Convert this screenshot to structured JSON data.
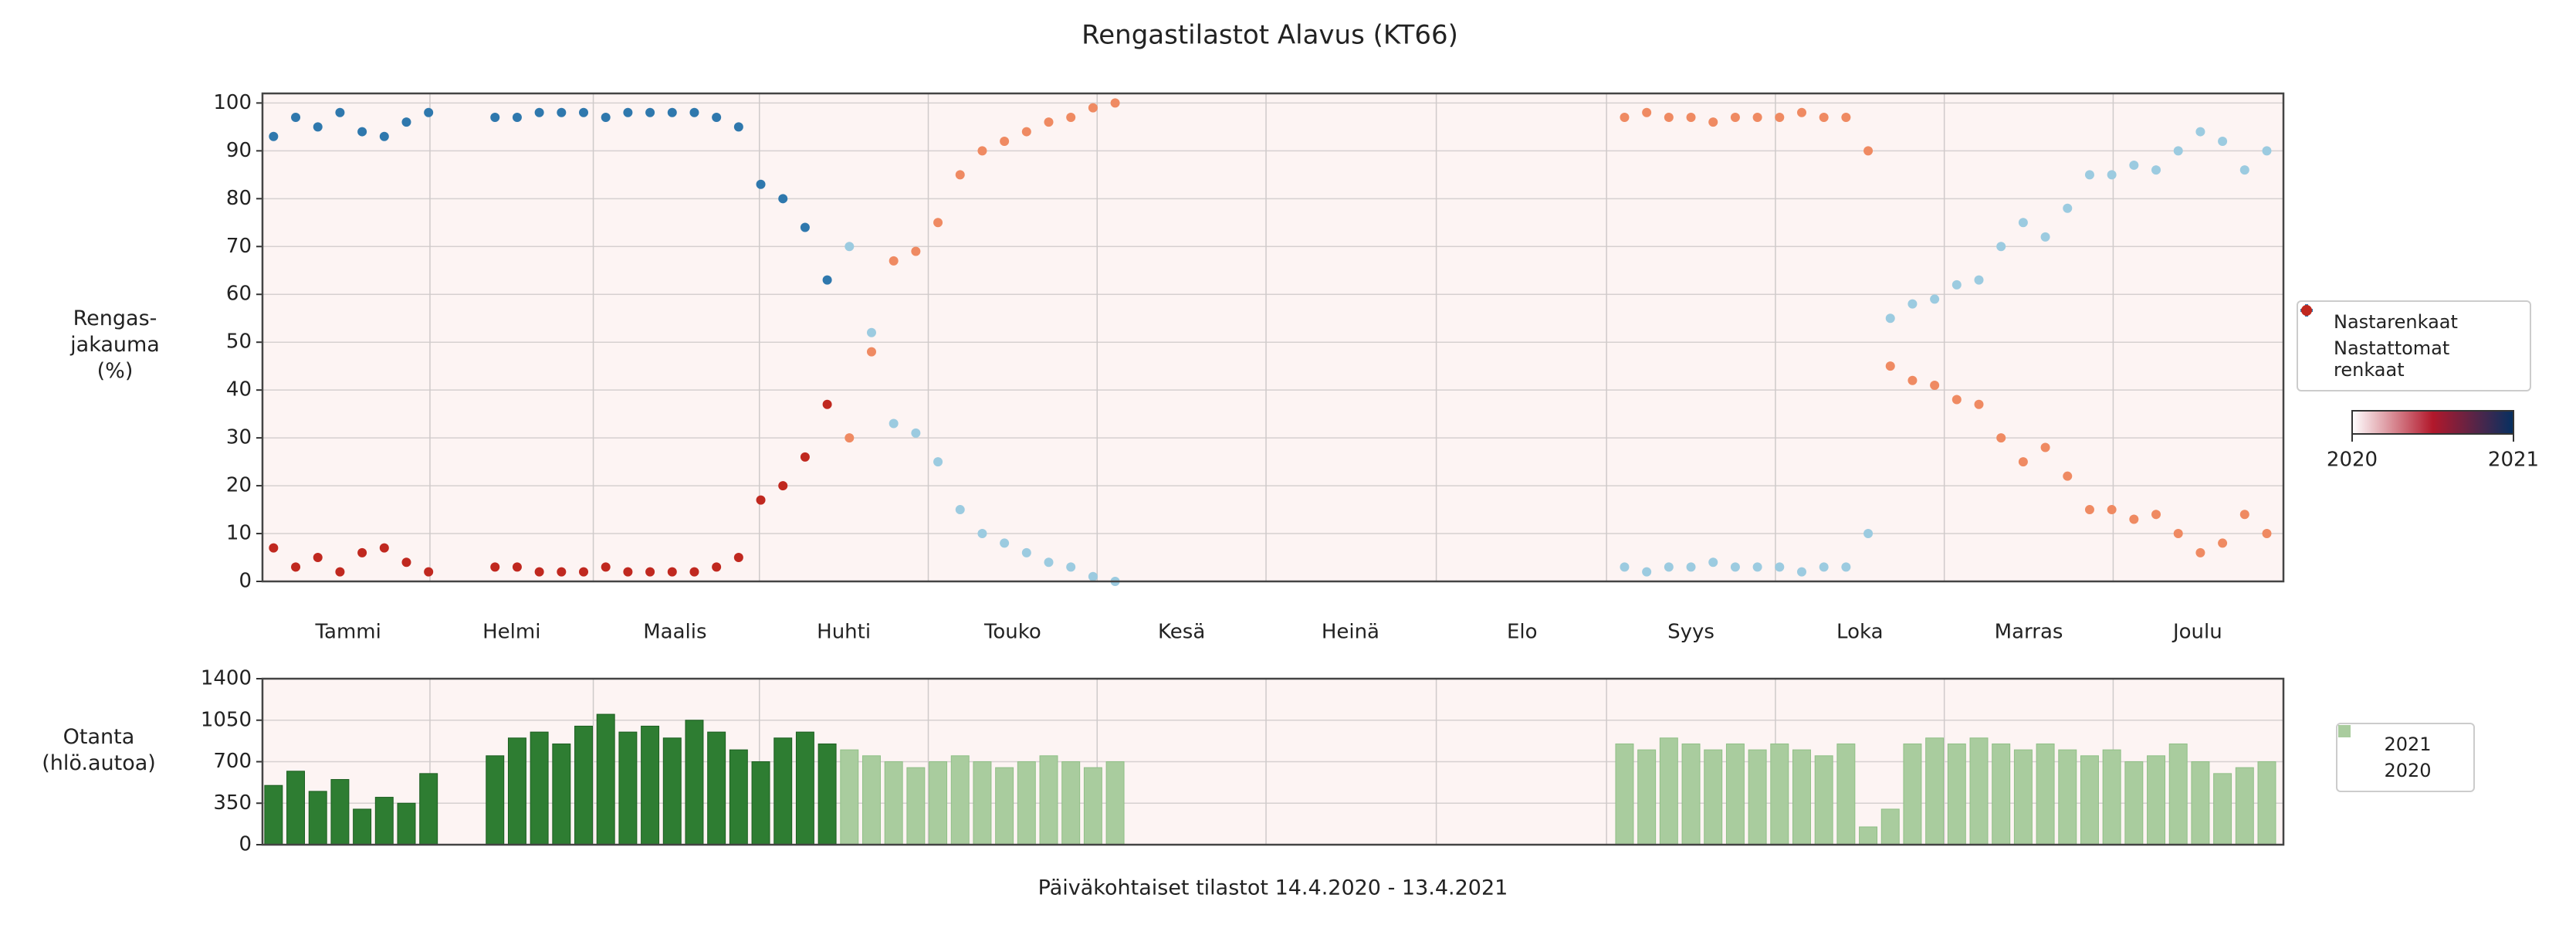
{
  "chart_data": [
    {
      "type": "scatter",
      "title": "Rengastilastot Alavus (KT66)",
      "ylabel": "Rengas-\njakauma\n(%)",
      "x": [
        2,
        6,
        10,
        14,
        18,
        22,
        26,
        30,
        42,
        46,
        50,
        54,
        58,
        62,
        66,
        70,
        74,
        78,
        82,
        86,
        90,
        94,
        98,
        102,
        106,
        110,
        114,
        118,
        122,
        126,
        130,
        134,
        138,
        142,
        146,
        150,
        154,
        246,
        250,
        254,
        258,
        262,
        266,
        270,
        274,
        278,
        282,
        286,
        290,
        294,
        298,
        302,
        306,
        310,
        314,
        318,
        322,
        326,
        330,
        334,
        338,
        342,
        346,
        350,
        354,
        358,
        362
      ],
      "year": [
        2021,
        2021,
        2021,
        2021,
        2021,
        2021,
        2021,
        2021,
        2021,
        2021,
        2021,
        2021,
        2021,
        2021,
        2021,
        2021,
        2021,
        2021,
        2021,
        2021,
        2021,
        2021,
        2021,
        2021,
        2020,
        2020,
        2020,
        2020,
        2020,
        2020,
        2020,
        2020,
        2020,
        2020,
        2020,
        2020,
        2020,
        2020,
        2020,
        2020,
        2020,
        2020,
        2020,
        2020,
        2020,
        2020,
        2020,
        2020,
        2020,
        2020,
        2020,
        2020,
        2020,
        2020,
        2020,
        2020,
        2020,
        2020,
        2020,
        2020,
        2020,
        2020,
        2020,
        2020,
        2020,
        2020,
        2020
      ],
      "series": [
        {
          "name": "Nastarenkaat",
          "colors": [
            "#9ccbe0",
            "#2f78ad"
          ],
          "values": [
            93,
            97,
            95,
            98,
            94,
            93,
            96,
            98,
            97,
            97,
            98,
            98,
            98,
            97,
            98,
            98,
            98,
            98,
            97,
            95,
            83,
            80,
            74,
            63,
            70,
            52,
            33,
            31,
            25,
            15,
            10,
            8,
            6,
            4,
            3,
            1,
            0,
            3,
            2,
            3,
            3,
            4,
            3,
            3,
            3,
            2,
            3,
            3,
            10,
            55,
            58,
            59,
            62,
            63,
            70,
            75,
            72,
            78,
            85,
            85,
            87,
            86,
            90,
            94,
            92,
            86,
            90
          ]
        },
        {
          "name": "Nastattomat renkaat",
          "colors": [
            "#ef8a62",
            "#c0281f"
          ],
          "values": [
            7,
            3,
            5,
            2,
            6,
            7,
            4,
            2,
            3,
            3,
            2,
            2,
            2,
            3,
            2,
            2,
            2,
            2,
            3,
            5,
            17,
            20,
            26,
            37,
            30,
            48,
            67,
            69,
            75,
            85,
            90,
            92,
            94,
            96,
            97,
            99,
            100,
            97,
            98,
            97,
            97,
            96,
            97,
            97,
            97,
            98,
            97,
            97,
            90,
            45,
            42,
            41,
            38,
            37,
            30,
            25,
            28,
            22,
            15,
            15,
            13,
            14,
            10,
            6,
            8,
            14,
            10
          ]
        }
      ],
      "xlim": [
        0,
        365
      ],
      "xticks": [
        {
          "value": 15.5,
          "label": "Tammi"
        },
        {
          "value": 45,
          "label": "Helmi"
        },
        {
          "value": 74.5,
          "label": "Maalis"
        },
        {
          "value": 105,
          "label": "Huhti"
        },
        {
          "value": 135.5,
          "label": "Touko"
        },
        {
          "value": 166,
          "label": "Kesä"
        },
        {
          "value": 196.5,
          "label": "Heinä"
        },
        {
          "value": 227.5,
          "label": "Elo"
        },
        {
          "value": 258,
          "label": "Syys"
        },
        {
          "value": 288.5,
          "label": "Loka"
        },
        {
          "value": 319,
          "label": "Marras"
        },
        {
          "value": 349.5,
          "label": "Joulu"
        }
      ],
      "ylim": [
        0,
        102
      ],
      "yticks": [
        0,
        10,
        20,
        30,
        40,
        50,
        60,
        70,
        80,
        90,
        100
      ],
      "grid": true,
      "legend": "right",
      "colorbar": {
        "ticks": [
          2020,
          2021
        ],
        "colors": [
          "#ffffff",
          "#b2182b",
          "#053061"
        ]
      }
    },
    {
      "type": "bar",
      "ylabel": "Otanta\n(hlö.autoa)",
      "xlabel": "Päiväkohtaiset tilastot 14.4.2020 - 13.4.2021",
      "x": [
        2,
        6,
        10,
        14,
        18,
        22,
        26,
        30,
        42,
        46,
        50,
        54,
        58,
        62,
        66,
        70,
        74,
        78,
        82,
        86,
        90,
        94,
        98,
        102,
        106,
        110,
        114,
        118,
        122,
        126,
        130,
        134,
        138,
        142,
        146,
        150,
        154,
        246,
        250,
        254,
        258,
        262,
        266,
        270,
        274,
        278,
        282,
        286,
        290,
        294,
        298,
        302,
        306,
        310,
        314,
        318,
        322,
        326,
        330,
        334,
        338,
        342,
        346,
        350,
        354,
        358,
        362
      ],
      "series": [
        {
          "name": "2021",
          "color": "#2e7d32",
          "values": [
            500,
            620,
            450,
            550,
            300,
            400,
            350,
            600,
            750,
            900,
            950,
            850,
            1000,
            1100,
            950,
            1000,
            900,
            1050,
            950,
            800,
            700,
            900,
            950,
            850,
            null,
            null,
            null,
            null,
            null,
            null,
            null,
            null,
            null,
            null,
            null,
            null,
            null,
            null,
            null,
            null,
            null,
            null,
            null,
            null,
            null,
            null,
            null,
            null,
            null,
            null,
            null,
            null,
            null,
            null,
            null,
            null,
            null,
            null,
            null,
            null,
            null,
            null,
            null,
            null,
            null,
            null,
            null
          ]
        },
        {
          "name": "2020",
          "color": "#a9cc9e",
          "values": [
            null,
            null,
            null,
            null,
            null,
            null,
            null,
            null,
            null,
            null,
            null,
            null,
            null,
            null,
            null,
            null,
            null,
            null,
            null,
            null,
            null,
            null,
            null,
            null,
            800,
            750,
            700,
            650,
            700,
            750,
            700,
            650,
            700,
            750,
            700,
            650,
            700,
            850,
            800,
            900,
            850,
            800,
            850,
            800,
            850,
            800,
            750,
            850,
            150,
            300,
            850,
            900,
            850,
            900,
            850,
            800,
            850,
            800,
            750,
            800,
            700,
            750,
            850,
            700,
            600,
            650,
            700
          ]
        }
      ],
      "xlim": [
        0,
        365
      ],
      "ylim": [
        0,
        1400
      ],
      "yticks": [
        0,
        350,
        700,
        1050,
        1400
      ],
      "grid": true,
      "legend": "right"
    }
  ]
}
